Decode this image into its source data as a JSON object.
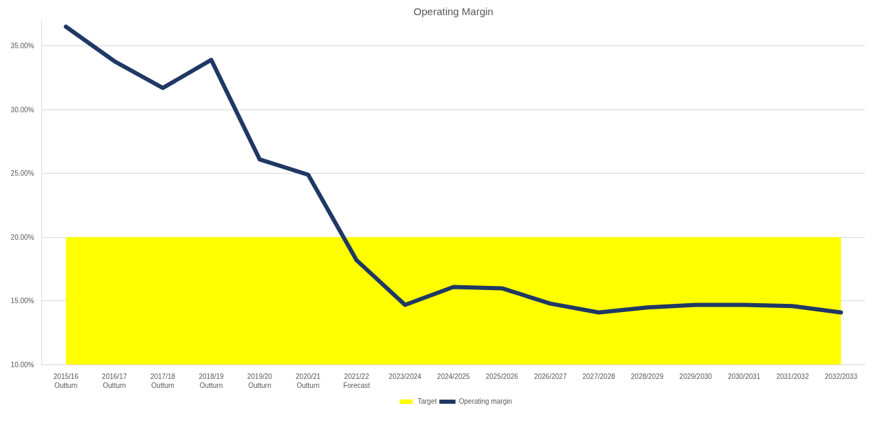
{
  "chart_data": {
    "type": "line",
    "title": "Operating Margin",
    "categories": [
      "2015/16\nOutturn",
      "2016/17\nOutturn",
      "2017/18\nOutturn",
      "2018/19\nOutturn",
      "2019/20\nOutturn",
      "2020/21\nOutturn",
      "2021/22\nForecast",
      "2023/2024",
      "2024/2025",
      "2025/2026",
      "2026/2027",
      "2027/2028",
      "2028/2029",
      "2029/2030",
      "2030/2031",
      "2031/2032",
      "2032/2033"
    ],
    "series": [
      {
        "name": "Target",
        "type": "area",
        "color": "#ffff00",
        "values": [
          20,
          20,
          20,
          20,
          20,
          20,
          20,
          20,
          20,
          20,
          20,
          20,
          20,
          20,
          20,
          20,
          20
        ]
      },
      {
        "name": "Operating margin",
        "color": "#1f3864",
        "values": [
          36.5,
          33.8,
          31.7,
          33.9,
          26.1,
          24.9,
          18.2,
          14.7,
          16.1,
          16.0,
          14.8,
          14.1,
          14.5,
          14.7,
          14.7,
          14.6,
          14.1
        ]
      }
    ],
    "ylim": [
      10,
      37
    ],
    "yticks": [
      {
        "value": 10,
        "label": "10.00%"
      },
      {
        "value": 15,
        "label": "15.00%"
      },
      {
        "value": 20,
        "label": "20.00%"
      },
      {
        "value": 25,
        "label": "25.00%"
      },
      {
        "value": 30,
        "label": "30.00%"
      },
      {
        "value": 35,
        "label": "35.00%"
      }
    ],
    "grid": "y",
    "legend": "bottom",
    "marker": "none",
    "line_style": "solid"
  }
}
